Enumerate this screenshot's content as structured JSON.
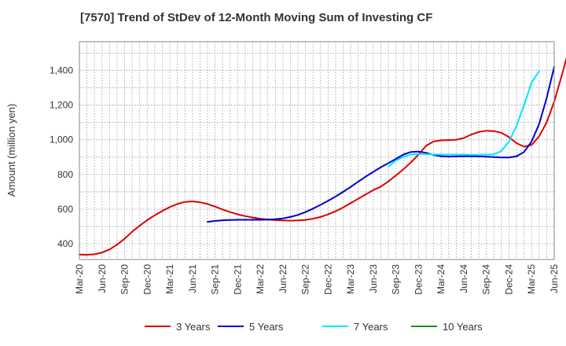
{
  "chart_data": {
    "type": "line",
    "title": "[7570]  Trend of StDev of 12-Month Moving Sum of Investing CF",
    "xlabel": "",
    "ylabel": "Amount (million yen)",
    "ylim": [
      310,
      1565
    ],
    "yticks": [
      400,
      600,
      800,
      1000,
      1200,
      1400
    ],
    "ytick_labels": [
      "400",
      "600",
      "800",
      "1,000",
      "1,200",
      "1,400"
    ],
    "x_start": "Mar-20",
    "x_end": "Jun-25",
    "xtick_labels": [
      "Mar-20",
      "Jun-20",
      "Sep-20",
      "Dec-20",
      "Mar-21",
      "Jun-21",
      "Sep-21",
      "Dec-21",
      "Mar-22",
      "Jun-22",
      "Sep-22",
      "Dec-22",
      "Mar-23",
      "Jun-23",
      "Sep-23",
      "Dec-23",
      "Mar-24",
      "Jun-24",
      "Sep-24",
      "Dec-24",
      "Mar-25",
      "Jun-25"
    ],
    "grid": true,
    "legend_position": "bottom",
    "series": [
      {
        "name": "3 Years",
        "color": "#dd0000",
        "start": "Mar-20",
        "values": [
          338,
          337,
          340,
          350,
          368,
          395,
          430,
          470,
          505,
          537,
          565,
          590,
          612,
          630,
          642,
          645,
          640,
          630,
          615,
          598,
          583,
          570,
          560,
          552,
          545,
          540,
          537,
          535,
          534,
          535,
          538,
          545,
          555,
          570,
          588,
          610,
          635,
          660,
          685,
          710,
          730,
          760,
          795,
          830,
          870,
          915,
          965,
          990,
          997,
          998,
          1000,
          1010,
          1030,
          1045,
          1052,
          1050,
          1040,
          1015,
          980,
          960,
          970,
          1020,
          1100,
          1220,
          1370,
          1530
        ]
      },
      {
        "name": "5 Years",
        "color": "#0000cc",
        "start": "Aug-21",
        "values": [
          527,
          532,
          536,
          538,
          539,
          539,
          539,
          539,
          540,
          542,
          547,
          555,
          567,
          583,
          603,
          625,
          648,
          673,
          700,
          728,
          758,
          788,
          815,
          842,
          865,
          890,
          915,
          930,
          932,
          925,
          912,
          905,
          903,
          904,
          905,
          905,
          904,
          902,
          900,
          898,
          898,
          905,
          930,
          990,
          1090,
          1240,
          1420
        ]
      },
      {
        "name": "7 Years",
        "color": "#00e5ff",
        "start": "Aug-23",
        "values": [
          845,
          880,
          902,
          915,
          918,
          917,
          915,
          915,
          915,
          915,
          915,
          914,
          914,
          915,
          916,
          935,
          990,
          1080,
          1200,
          1330,
          1395
        ]
      },
      {
        "name": "10 Years",
        "color": "#228b22",
        "start": "Aug-23",
        "values": []
      }
    ]
  }
}
